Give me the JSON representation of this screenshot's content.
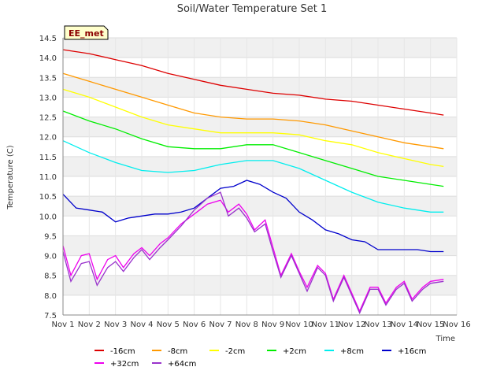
{
  "chart_data": {
    "type": "line",
    "title": "Soil/Water Temperature Set 1",
    "xlabel": "Time",
    "ylabel": "Temperature (C)",
    "badge": "EE_met",
    "xlim": [
      1,
      16
    ],
    "ylim": [
      7.5,
      14.5
    ],
    "xticks": [
      "Nov 1",
      "Nov 2",
      "Nov 3",
      "Nov 4",
      "Nov 5",
      "Nov 6",
      "Nov 7",
      "Nov 8",
      "Nov 9",
      "Nov 10",
      "Nov 11",
      "Nov 12",
      "Nov 13",
      "Nov 14",
      "Nov 15",
      "Nov 16"
    ],
    "yticks": [
      "7.5",
      "8.0",
      "8.5",
      "9.0",
      "9.5",
      "10.0",
      "10.5",
      "11.0",
      "11.5",
      "12.0",
      "12.5",
      "13.0",
      "13.5",
      "14.0",
      "14.5"
    ],
    "grid": true,
    "legend_position": "bottom",
    "series": [
      {
        "name": "-16cm",
        "color": "#dd0000",
        "x": [
          1,
          2,
          3,
          4,
          5,
          6,
          7,
          8,
          9,
          10,
          11,
          12,
          13,
          14,
          15,
          15.5
        ],
        "values": [
          14.2,
          14.1,
          13.95,
          13.8,
          13.6,
          13.45,
          13.3,
          13.2,
          13.1,
          13.05,
          12.95,
          12.9,
          12.8,
          12.7,
          12.6,
          12.55
        ]
      },
      {
        "name": "-8cm",
        "color": "#ff9900",
        "x": [
          1,
          2,
          3,
          4,
          5,
          6,
          7,
          8,
          9,
          10,
          11,
          12,
          13,
          14,
          15,
          15.5
        ],
        "values": [
          13.6,
          13.4,
          13.2,
          13.0,
          12.8,
          12.6,
          12.5,
          12.45,
          12.45,
          12.4,
          12.3,
          12.15,
          12.0,
          11.85,
          11.75,
          11.7
        ]
      },
      {
        "name": "-2cm",
        "color": "#ffff00",
        "x": [
          1,
          2,
          3,
          4,
          5,
          6,
          7,
          8,
          9,
          10,
          11,
          12,
          13,
          14,
          15,
          15.5
        ],
        "values": [
          13.2,
          13.0,
          12.75,
          12.5,
          12.3,
          12.2,
          12.1,
          12.1,
          12.1,
          12.05,
          11.9,
          11.8,
          11.6,
          11.45,
          11.3,
          11.25
        ]
      },
      {
        "name": "+2cm",
        "color": "#00ee00",
        "x": [
          1,
          2,
          3,
          4,
          5,
          6,
          7,
          8,
          9,
          10,
          11,
          12,
          13,
          14,
          15,
          15.5
        ],
        "values": [
          12.65,
          12.4,
          12.2,
          11.95,
          11.75,
          11.7,
          11.7,
          11.8,
          11.8,
          11.6,
          11.4,
          11.2,
          11.0,
          10.9,
          10.8,
          10.75
        ]
      },
      {
        "name": "+8cm",
        "color": "#00eeee",
        "x": [
          1,
          2,
          3,
          4,
          5,
          6,
          7,
          8,
          9,
          10,
          11,
          12,
          13,
          14,
          15,
          15.5
        ],
        "values": [
          11.9,
          11.6,
          11.35,
          11.15,
          11.1,
          11.15,
          11.3,
          11.4,
          11.4,
          11.2,
          10.9,
          10.6,
          10.35,
          10.2,
          10.1,
          10.1
        ]
      },
      {
        "name": "+16cm",
        "color": "#0000cc",
        "x": [
          1,
          1.5,
          2,
          2.5,
          3,
          3.5,
          4,
          4.5,
          5,
          5.5,
          6,
          6.5,
          7,
          7.5,
          8,
          8.5,
          9,
          9.5,
          10,
          10.5,
          11,
          11.5,
          12,
          12.5,
          13,
          13.5,
          14,
          14.5,
          15,
          15.5
        ],
        "values": [
          10.55,
          10.2,
          10.15,
          10.1,
          9.85,
          9.95,
          10.0,
          10.05,
          10.05,
          10.1,
          10.2,
          10.45,
          10.7,
          10.75,
          10.9,
          10.8,
          10.6,
          10.45,
          10.1,
          9.9,
          9.65,
          9.55,
          9.4,
          9.35,
          9.15,
          9.15,
          9.15,
          9.15,
          9.1,
          9.1
        ]
      },
      {
        "name": "+32cm",
        "color": "#ee00ee",
        "x": [
          1,
          1.3,
          1.7,
          2,
          2.3,
          2.7,
          3,
          3.3,
          3.7,
          4,
          4.3,
          4.7,
          5,
          5.5,
          6,
          6.5,
          7,
          7.3,
          7.7,
          8,
          8.3,
          8.7,
          9,
          9.3,
          9.7,
          10,
          10.3,
          10.7,
          11,
          11.3,
          11.7,
          12,
          12.3,
          12.7,
          13,
          13.3,
          13.7,
          14,
          14.3,
          14.7,
          15,
          15.5
        ],
        "values": [
          9.25,
          8.5,
          9.0,
          9.05,
          8.4,
          8.9,
          9.0,
          8.7,
          9.05,
          9.2,
          9.0,
          9.3,
          9.45,
          9.8,
          10.05,
          10.3,
          10.4,
          10.1,
          10.3,
          10.05,
          9.65,
          9.9,
          9.2,
          8.5,
          9.05,
          8.6,
          8.2,
          8.75,
          8.55,
          7.9,
          8.5,
          8.05,
          7.6,
          8.2,
          8.2,
          7.8,
          8.2,
          8.35,
          7.9,
          8.2,
          8.35,
          8.4
        ]
      },
      {
        "name": "+64cm",
        "color": "#9933cc",
        "x": [
          1,
          1.3,
          1.7,
          2,
          2.3,
          2.7,
          3,
          3.3,
          3.7,
          4,
          4.3,
          4.7,
          5,
          5.5,
          6,
          6.5,
          7,
          7.3,
          7.7,
          8,
          8.3,
          8.7,
          9,
          9.3,
          9.7,
          10,
          10.3,
          10.7,
          11,
          11.3,
          11.7,
          12,
          12.3,
          12.7,
          13,
          13.3,
          13.7,
          14,
          14.3,
          14.7,
          15,
          15.5
        ],
        "values": [
          9.1,
          8.35,
          8.8,
          8.85,
          8.25,
          8.7,
          8.85,
          8.6,
          8.95,
          9.15,
          8.9,
          9.2,
          9.4,
          9.75,
          10.15,
          10.45,
          10.6,
          10.0,
          10.2,
          9.95,
          9.6,
          9.8,
          9.1,
          8.45,
          9.0,
          8.55,
          8.1,
          8.7,
          8.5,
          7.85,
          8.45,
          8.0,
          7.55,
          8.15,
          8.15,
          7.75,
          8.15,
          8.3,
          7.85,
          8.15,
          8.3,
          8.35
        ]
      }
    ]
  }
}
